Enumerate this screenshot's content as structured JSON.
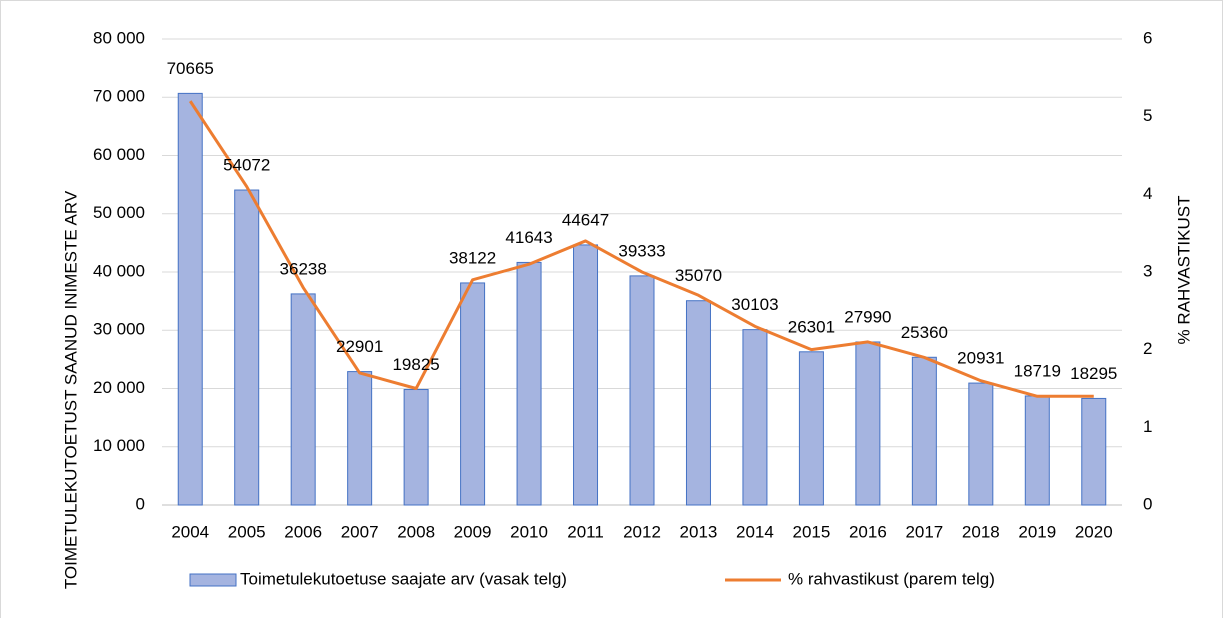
{
  "chart_data": {
    "type": "bar-line",
    "y_title": "TOIMETULEKUTOETUST SAANUD INIMESTE ARV",
    "y2_title": "% RAHVASTIKUST",
    "categories": [
      "2004",
      "2005",
      "2006",
      "2007",
      "2008",
      "2009",
      "2010",
      "2011",
      "2012",
      "2013",
      "2014",
      "2015",
      "2016",
      "2017",
      "2018",
      "2019",
      "2020"
    ],
    "series": [
      {
        "name": "Toimetulekutoetuse saajate arv (vasak telg)",
        "type": "bar",
        "color": "#a5b4e0",
        "edge": "#4472c4",
        "values": [
          70665,
          54072,
          36238,
          22901,
          19825,
          38122,
          41643,
          44647,
          39333,
          35070,
          30103,
          26301,
          27990,
          25360,
          20931,
          18719,
          18295
        ]
      },
      {
        "name": "% rahvastikust (parem telg)",
        "type": "line",
        "axis": "y2",
        "color": "#ed7d31",
        "values": [
          5.2,
          4.1,
          2.8,
          1.7,
          1.5,
          2.9,
          3.1,
          3.4,
          3.0,
          2.7,
          2.3,
          2.0,
          2.1,
          1.9,
          1.6,
          1.4,
          1.4
        ]
      }
    ],
    "ylim": [
      0,
      80000
    ],
    "yticks": [
      0,
      {
        "value": 10000,
        "label": "10 000"
      },
      {
        "value": 20000,
        "label": "20 000"
      },
      {
        "value": 30000,
        "label": "30 000"
      },
      {
        "value": 40000,
        "label": "40 000"
      },
      {
        "value": 50000,
        "label": "50 000"
      },
      {
        "value": 60000,
        "label": "60 000"
      },
      {
        "value": 70000,
        "label": "70 000"
      },
      {
        "value": 80000,
        "label": "80 000"
      }
    ],
    "y2lim": [
      0,
      6
    ],
    "y2ticks": [
      0,
      1,
      2,
      3,
      4,
      5,
      6
    ],
    "grid": true,
    "legend": "bottom"
  }
}
